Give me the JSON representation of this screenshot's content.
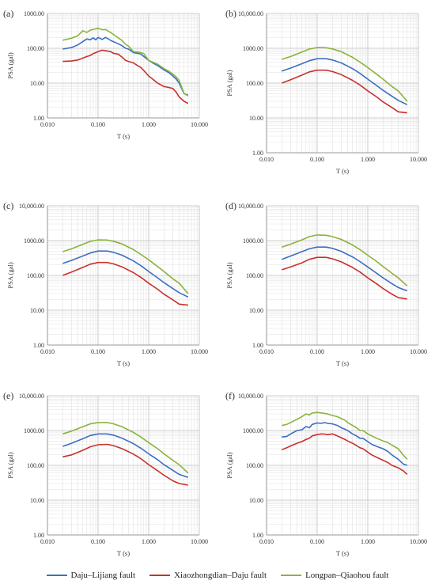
{
  "colors": {
    "blue": "#3b6fc4",
    "red": "#c8312c",
    "green": "#8ab33c"
  },
  "legend": [
    {
      "name": "Daju–Lijiang fault",
      "color": "#3b6fc4"
    },
    {
      "name": "Xiaozhongdian–Daju fault",
      "color": "#c8312c"
    },
    {
      "name": "Longpan–Qiaohou fault",
      "color": "#8ab33c"
    }
  ],
  "chart_data": [
    {
      "panel_label": "(a)",
      "type": "line",
      "xscale": "log",
      "yscale": "log",
      "xlim": [
        0.01,
        10
      ],
      "ylim": [
        1,
        1000
      ],
      "xticks": [
        "0.010",
        "0.100",
        "1.000",
        "10.000"
      ],
      "yticks": [
        "1.00",
        "10.00",
        "100.00",
        "1000.00"
      ],
      "xlabel": "T (s)",
      "ylabel": "PSA (gal)",
      "grid": true,
      "series": [
        {
          "name": "Daju–Lijiang fault",
          "x": [
            0.02,
            0.03,
            0.04,
            0.05,
            0.06,
            0.07,
            0.08,
            0.09,
            0.1,
            0.12,
            0.14,
            0.16,
            0.18,
            0.2,
            0.25,
            0.3,
            0.35,
            0.4,
            0.5,
            0.6,
            0.7,
            0.8,
            1,
            1.2,
            1.5,
            2,
            2.5,
            3,
            3.5,
            4,
            5,
            6
          ],
          "y": [
            95,
            105,
            125,
            155,
            185,
            175,
            200,
            175,
            205,
            180,
            205,
            185,
            165,
            155,
            135,
            118,
            100,
            95,
            75,
            72,
            68,
            58,
            45,
            38,
            32,
            24,
            20,
            16,
            13,
            10,
            5,
            4.5
          ]
        },
        {
          "name": "Xiaozhongdian–Daju fault",
          "x": [
            0.02,
            0.03,
            0.04,
            0.05,
            0.06,
            0.07,
            0.08,
            0.09,
            0.1,
            0.12,
            0.14,
            0.16,
            0.18,
            0.2,
            0.25,
            0.3,
            0.35,
            0.4,
            0.5,
            0.6,
            0.7,
            0.8,
            1,
            1.2,
            1.5,
            2,
            2.5,
            3,
            3.5,
            4,
            5,
            6
          ],
          "y": [
            42,
            43,
            46,
            52,
            58,
            62,
            70,
            75,
            80,
            88,
            85,
            82,
            80,
            72,
            68,
            55,
            45,
            42,
            38,
            32,
            28,
            23,
            16,
            13,
            10,
            8,
            7.5,
            7,
            5.5,
            4,
            3,
            2.6
          ]
        },
        {
          "name": "Longpan–Qiaohou fault",
          "x": [
            0.02,
            0.03,
            0.04,
            0.05,
            0.06,
            0.07,
            0.08,
            0.09,
            0.1,
            0.12,
            0.14,
            0.16,
            0.18,
            0.2,
            0.25,
            0.3,
            0.35,
            0.4,
            0.5,
            0.6,
            0.7,
            0.8,
            1,
            1.2,
            1.5,
            2,
            2.5,
            3,
            3.5,
            4,
            5,
            6
          ],
          "y": [
            170,
            195,
            230,
            320,
            285,
            330,
            350,
            360,
            375,
            340,
            345,
            310,
            280,
            250,
            200,
            165,
            130,
            115,
            80,
            78,
            75,
            70,
            45,
            40,
            35,
            26,
            22,
            18,
            15,
            12,
            5,
            4.3
          ]
        }
      ]
    },
    {
      "panel_label": "(b)",
      "type": "line",
      "xscale": "log",
      "yscale": "log",
      "xlim": [
        0.01,
        10
      ],
      "ylim": [
        1,
        10000
      ],
      "xticks": [
        "0.010",
        "0.100",
        "1.000",
        "10.000"
      ],
      "yticks": [
        "1.00",
        "10.00",
        "100.00",
        "1000.00",
        "10,000.00"
      ],
      "xlabel": "T (s)",
      "ylabel": "PSA (gal)",
      "grid": true,
      "series": [
        {
          "name": "Daju–Lijiang fault",
          "x": [
            0.02,
            0.03,
            0.05,
            0.07,
            0.1,
            0.15,
            0.2,
            0.3,
            0.5,
            0.7,
            1,
            1.5,
            2,
            3,
            4,
            6
          ],
          "y": [
            220,
            270,
            360,
            440,
            500,
            500,
            460,
            380,
            260,
            190,
            130,
            85,
            62,
            42,
            32,
            24
          ]
        },
        {
          "name": "Xiaozhongdian–Daju fault",
          "x": [
            0.02,
            0.03,
            0.05,
            0.07,
            0.1,
            0.15,
            0.2,
            0.3,
            0.5,
            0.7,
            1,
            1.5,
            2,
            3,
            4,
            6
          ],
          "y": [
            100,
            125,
            170,
            210,
            235,
            235,
            215,
            175,
            120,
            88,
            60,
            40,
            29,
            20,
            15,
            14
          ]
        },
        {
          "name": "Longpan–Qiaohou fault",
          "x": [
            0.02,
            0.03,
            0.05,
            0.07,
            0.1,
            0.15,
            0.2,
            0.3,
            0.5,
            0.7,
            1,
            1.5,
            2,
            3,
            4,
            6
          ],
          "y": [
            480,
            580,
            780,
            950,
            1050,
            1040,
            960,
            800,
            550,
            400,
            280,
            180,
            130,
            80,
            60,
            30
          ]
        }
      ]
    },
    {
      "panel_label": "(c)",
      "type": "line",
      "xscale": "log",
      "yscale": "log",
      "xlim": [
        0.01,
        10
      ],
      "ylim": [
        1,
        10000
      ],
      "xticks": [
        "0.010",
        "0.100",
        "1.000",
        "10.000"
      ],
      "yticks": [
        "1.00",
        "10.00",
        "100.00",
        "1000.00",
        "10,000.00"
      ],
      "xlabel": "T (s)",
      "ylabel": "PSA (gal)",
      "grid": true,
      "series": [
        {
          "name": "Daju–Lijiang fault",
          "x": [
            0.02,
            0.03,
            0.05,
            0.07,
            0.1,
            0.15,
            0.2,
            0.3,
            0.5,
            0.7,
            1,
            1.5,
            2,
            3,
            4,
            6
          ],
          "y": [
            220,
            270,
            360,
            440,
            500,
            500,
            460,
            380,
            260,
            190,
            130,
            85,
            62,
            42,
            32,
            24
          ]
        },
        {
          "name": "Xiaozhongdian–Daju fault",
          "x": [
            0.02,
            0.03,
            0.05,
            0.07,
            0.1,
            0.15,
            0.2,
            0.3,
            0.5,
            0.7,
            1,
            1.5,
            2,
            3,
            4,
            6
          ],
          "y": [
            100,
            125,
            170,
            210,
            235,
            235,
            215,
            175,
            120,
            88,
            60,
            40,
            29,
            20,
            15,
            14
          ]
        },
        {
          "name": "Longpan–Qiaohou fault",
          "x": [
            0.02,
            0.03,
            0.05,
            0.07,
            0.1,
            0.15,
            0.2,
            0.3,
            0.5,
            0.7,
            1,
            1.5,
            2,
            3,
            4,
            6
          ],
          "y": [
            480,
            580,
            780,
            950,
            1050,
            1040,
            960,
            800,
            550,
            400,
            280,
            180,
            130,
            80,
            60,
            30
          ]
        }
      ]
    },
    {
      "panel_label": "(d)",
      "type": "line",
      "xscale": "log",
      "yscale": "log",
      "xlim": [
        0.01,
        10
      ],
      "ylim": [
        1,
        10000
      ],
      "xticks": [
        "0.010",
        "0.100",
        "1.000",
        "10.000"
      ],
      "yticks": [
        "1.00",
        "10.00",
        "100.00",
        "1000.00",
        "10,000.00"
      ],
      "xlabel": "T (s)",
      "ylabel": "PSA (gal)",
      "grid": true,
      "series": [
        {
          "name": "Daju–Lijiang fault",
          "x": [
            0.02,
            0.03,
            0.05,
            0.07,
            0.1,
            0.15,
            0.2,
            0.3,
            0.5,
            0.7,
            1,
            1.5,
            2,
            3,
            4,
            6
          ],
          "y": [
            290,
            360,
            480,
            580,
            650,
            650,
            600,
            490,
            340,
            250,
            175,
            115,
            85,
            58,
            45,
            36
          ]
        },
        {
          "name": "Xiaozhongdian–Daju fault",
          "x": [
            0.02,
            0.03,
            0.05,
            0.07,
            0.1,
            0.15,
            0.2,
            0.3,
            0.5,
            0.7,
            1,
            1.5,
            2,
            3,
            4,
            6
          ],
          "y": [
            145,
            175,
            230,
            290,
            330,
            330,
            300,
            245,
            170,
            125,
            85,
            57,
            42,
            29,
            23,
            21
          ]
        },
        {
          "name": "Longpan–Qiaohou fault",
          "x": [
            0.02,
            0.03,
            0.05,
            0.07,
            0.1,
            0.15,
            0.2,
            0.3,
            0.5,
            0.7,
            1,
            1.5,
            2,
            3,
            4,
            6
          ],
          "y": [
            650,
            790,
            1050,
            1300,
            1450,
            1420,
            1300,
            1080,
            750,
            550,
            380,
            250,
            180,
            115,
            85,
            50
          ]
        }
      ]
    },
    {
      "panel_label": "(e)",
      "type": "line",
      "xscale": "log",
      "yscale": "log",
      "xlim": [
        0.01,
        10
      ],
      "ylim": [
        1,
        10000
      ],
      "xticks": [
        "0.010",
        "0.100",
        "1.000",
        "10.000"
      ],
      "yticks": [
        "1.00",
        "10.00",
        "100.00",
        "1000.00",
        "10,000.00"
      ],
      "xlabel": "T (s)",
      "ylabel": "PSA (gal)",
      "grid": true,
      "series": [
        {
          "name": "Daju–Lijiang fault",
          "x": [
            0.02,
            0.03,
            0.05,
            0.07,
            0.1,
            0.15,
            0.2,
            0.3,
            0.5,
            0.7,
            1,
            1.5,
            2,
            3,
            4,
            6
          ],
          "y": [
            350,
            430,
            580,
            720,
            800,
            800,
            740,
            600,
            420,
            310,
            215,
            145,
            105,
            72,
            55,
            45
          ]
        },
        {
          "name": "Xiaozhongdian–Daju fault",
          "x": [
            0.02,
            0.03,
            0.05,
            0.07,
            0.1,
            0.15,
            0.2,
            0.3,
            0.5,
            0.7,
            1,
            1.5,
            2,
            3,
            4,
            6
          ],
          "y": [
            175,
            200,
            270,
            340,
            390,
            400,
            370,
            300,
            210,
            155,
            105,
            70,
            52,
            36,
            30,
            27
          ]
        },
        {
          "name": "Longpan–Qiaohou fault",
          "x": [
            0.02,
            0.03,
            0.05,
            0.07,
            0.1,
            0.15,
            0.2,
            0.3,
            0.5,
            0.7,
            1,
            1.5,
            2,
            3,
            4,
            6
          ],
          "y": [
            800,
            960,
            1280,
            1550,
            1700,
            1700,
            1560,
            1280,
            880,
            650,
            450,
            300,
            215,
            140,
            105,
            60
          ]
        }
      ]
    },
    {
      "panel_label": "(f)",
      "type": "line",
      "xscale": "log",
      "yscale": "log",
      "xlim": [
        0.01,
        10
      ],
      "ylim": [
        1,
        10000
      ],
      "xticks": [
        "0.010",
        "0.100",
        "1.000",
        "10.000"
      ],
      "yticks": [
        "1.00",
        "10.00",
        "100.00",
        "1000.00",
        "10,000.00"
      ],
      "xlabel": "T (s)",
      "ylabel": "PSA (gal)",
      "grid": true,
      "series": [
        {
          "name": "Daju–Lijiang fault",
          "x": [
            0.02,
            0.025,
            0.03,
            0.04,
            0.05,
            0.06,
            0.07,
            0.08,
            0.1,
            0.12,
            0.14,
            0.16,
            0.2,
            0.25,
            0.3,
            0.35,
            0.4,
            0.5,
            0.6,
            0.7,
            0.8,
            1,
            1.2,
            1.5,
            2,
            2.5,
            3,
            4,
            5,
            6
          ],
          "y": [
            650,
            680,
            800,
            1000,
            1050,
            1300,
            1200,
            1500,
            1650,
            1600,
            1700,
            1600,
            1550,
            1400,
            1200,
            1100,
            1000,
            800,
            700,
            600,
            600,
            480,
            400,
            350,
            300,
            250,
            200,
            150,
            110,
            100
          ]
        },
        {
          "name": "Xiaozhongdian–Daju fault",
          "x": [
            0.02,
            0.025,
            0.03,
            0.04,
            0.05,
            0.06,
            0.07,
            0.08,
            0.1,
            0.12,
            0.14,
            0.16,
            0.2,
            0.25,
            0.3,
            0.35,
            0.4,
            0.5,
            0.6,
            0.7,
            0.8,
            1,
            1.2,
            1.5,
            2,
            2.5,
            3,
            4,
            5,
            6
          ],
          "y": [
            280,
            320,
            360,
            430,
            480,
            550,
            600,
            700,
            760,
            800,
            790,
            760,
            800,
            700,
            620,
            560,
            500,
            430,
            370,
            320,
            300,
            240,
            200,
            170,
            140,
            120,
            100,
            85,
            70,
            55
          ]
        },
        {
          "name": "Longpan–Qiaohou fault",
          "x": [
            0.02,
            0.025,
            0.03,
            0.04,
            0.05,
            0.06,
            0.07,
            0.08,
            0.1,
            0.12,
            0.14,
            0.16,
            0.2,
            0.25,
            0.3,
            0.35,
            0.4,
            0.5,
            0.6,
            0.7,
            0.8,
            1,
            1.2,
            1.5,
            2,
            2.5,
            3,
            4,
            5,
            6
          ],
          "y": [
            1400,
            1500,
            1700,
            2100,
            2500,
            3000,
            2800,
            3200,
            3300,
            3200,
            3100,
            3000,
            2700,
            2500,
            2200,
            2000,
            1700,
            1400,
            1200,
            1000,
            1000,
            800,
            700,
            600,
            500,
            450,
            380,
            300,
            200,
            150
          ]
        }
      ]
    }
  ]
}
